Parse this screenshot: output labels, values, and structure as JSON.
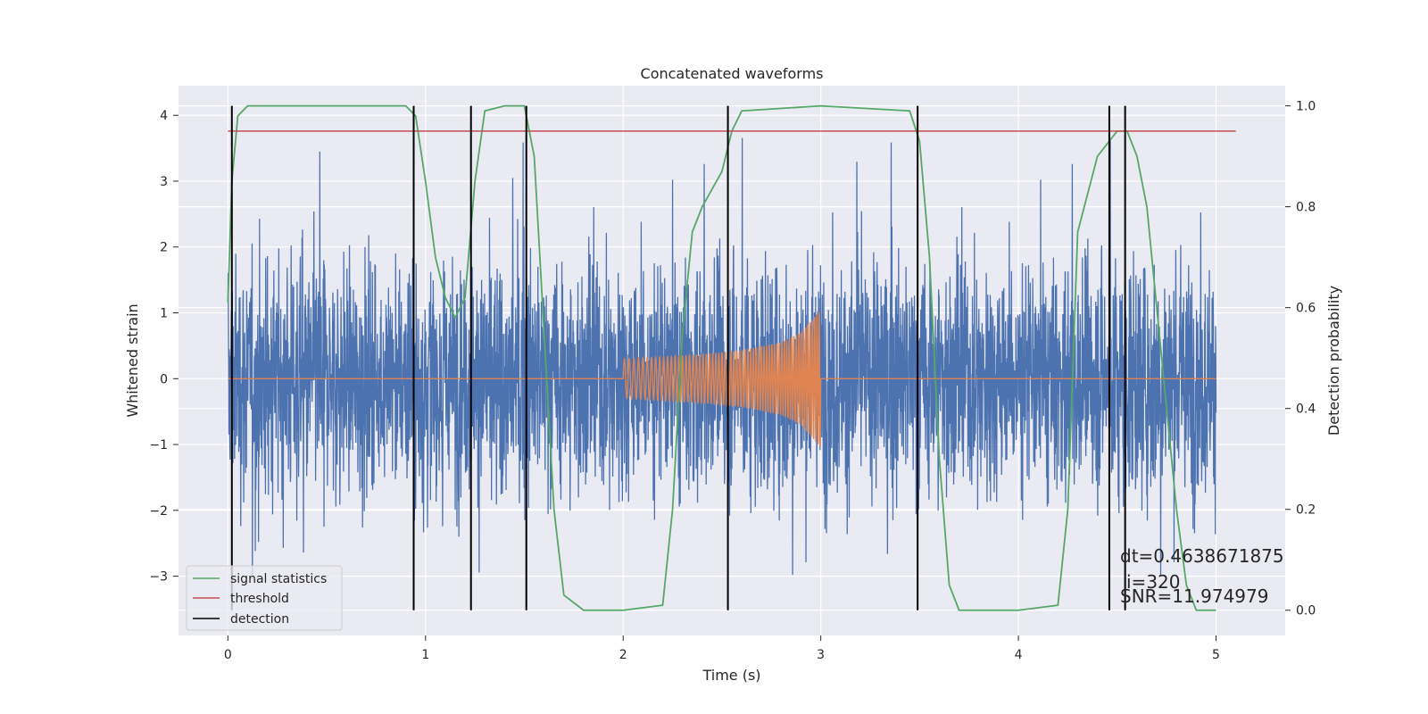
{
  "chart_data": {
    "type": "line",
    "title": "Concatenated waveforms",
    "xlabel": "Time (s)",
    "ylabel_left": "Whitened strain",
    "ylabel_right": "Detection probability",
    "xlim": [
      -0.25,
      5.35
    ],
    "ylim_left": [
      -3.9,
      4.45
    ],
    "ylim_right": [
      -0.05,
      1.04
    ],
    "x_ticks": [
      0,
      1,
      2,
      3,
      4,
      5
    ],
    "x_tick_labels": [
      "0",
      "1",
      "2",
      "3",
      "4",
      "5"
    ],
    "y_left_ticks": [
      -3,
      -2,
      -1,
      0,
      1,
      2,
      3,
      4
    ],
    "y_left_tick_labels": [
      "−3",
      "−2",
      "−1",
      "0",
      "1",
      "2",
      "3",
      "4"
    ],
    "y_right_ticks": [
      0.0,
      0.2,
      0.4,
      0.6,
      0.8,
      1.0
    ],
    "y_right_tick_labels": [
      "0.0",
      "0.2",
      "0.4",
      "0.6",
      "0.8",
      "1.0"
    ],
    "grid": true,
    "legend_position": "lower-left",
    "series": [
      {
        "key": "strain",
        "axis": "left",
        "color": "#4c72b0",
        "x_range": [
          0,
          5
        ],
        "typical_amplitude": 1.1,
        "min": -3.4,
        "max": 4.1
      },
      {
        "key": "injection",
        "axis": "left",
        "color": "#dd8452",
        "x": [
          0,
          2.0,
          2.0,
          2.2,
          2.4,
          2.6,
          2.8,
          2.9,
          3.0,
          3.0,
          5.0
        ],
        "envelope": [
          0,
          0,
          0.3,
          0.33,
          0.37,
          0.43,
          0.55,
          0.7,
          1.05,
          0,
          0
        ]
      },
      {
        "name": "signal statistics",
        "axis": "right",
        "color": "#55a868",
        "x": [
          0.0,
          0.02,
          0.05,
          0.1,
          0.2,
          0.5,
          0.9,
          0.95,
          1.0,
          1.05,
          1.1,
          1.15,
          1.2,
          1.25,
          1.3,
          1.4,
          1.5,
          1.55,
          1.6,
          1.65,
          1.7,
          1.8,
          2.0,
          2.2,
          2.25,
          2.3,
          2.35,
          2.4,
          2.5,
          2.55,
          2.6,
          3.0,
          3.45,
          3.5,
          3.55,
          3.6,
          3.65,
          3.7,
          4.0,
          4.2,
          4.25,
          4.3,
          4.4,
          4.5,
          4.55,
          4.6,
          4.65,
          4.7,
          4.75,
          4.8,
          4.85,
          4.9,
          5.0
        ],
        "values": [
          0.61,
          0.85,
          0.98,
          1.0,
          1.0,
          1.0,
          1.0,
          0.98,
          0.85,
          0.7,
          0.62,
          0.58,
          0.62,
          0.85,
          0.99,
          1.0,
          1.0,
          0.9,
          0.55,
          0.2,
          0.03,
          0.0,
          0.0,
          0.01,
          0.2,
          0.55,
          0.75,
          0.8,
          0.87,
          0.95,
          0.99,
          1.0,
          0.99,
          0.93,
          0.7,
          0.3,
          0.05,
          0.0,
          0.0,
          0.01,
          0.2,
          0.75,
          0.9,
          0.95,
          0.95,
          0.9,
          0.8,
          0.6,
          0.4,
          0.2,
          0.05,
          0.0,
          0.0
        ]
      },
      {
        "name": "threshold",
        "axis": "right",
        "color": "#c44e52",
        "x": [
          0,
          5.1
        ],
        "values": [
          0.95,
          0.95
        ]
      },
      {
        "name": "detection",
        "color": "#000000",
        "type": "vlines",
        "x": [
          0.02,
          0.94,
          1.23,
          1.51,
          2.53,
          3.49,
          4.46,
          4.54
        ]
      }
    ],
    "annotations": [
      "dt=0.4638671875",
      "i=320",
      "SNR=11.974979"
    ]
  }
}
